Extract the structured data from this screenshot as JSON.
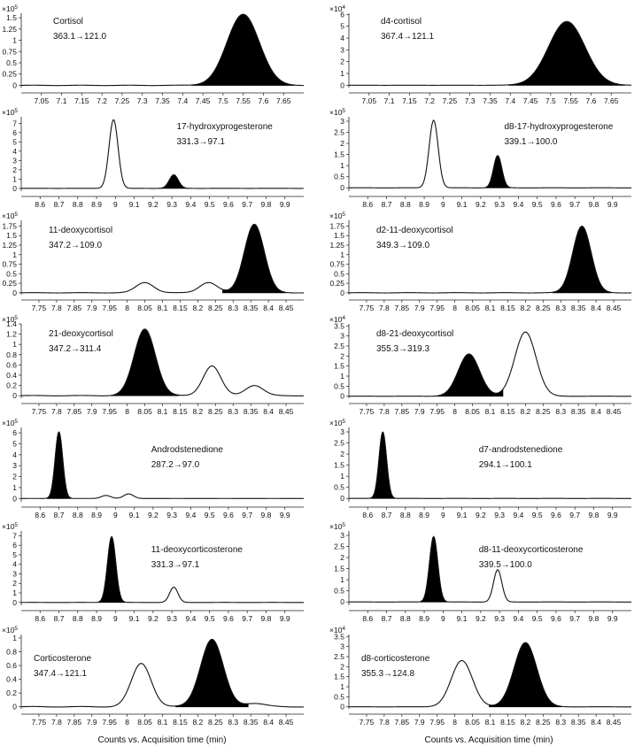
{
  "figure": {
    "x_axis_title": "Counts vs. Acquisition time (min)"
  },
  "chart_data": [
    {
      "type": "line",
      "col": 0,
      "row": 0,
      "title": "Cortisol",
      "transition": "363.1→121.0",
      "multiplier": "×10",
      "exponent": "5",
      "xlim": [
        7.0,
        7.7
      ],
      "ylim": [
        -0.05,
        1.6
      ],
      "x_ticks": [
        7.05,
        7.1,
        7.15,
        7.2,
        7.25,
        7.3,
        7.35,
        7.4,
        7.45,
        7.5,
        7.55,
        7.6,
        7.65
      ],
      "x_tick_labels": [
        "7.05",
        "7.1",
        "7.15",
        "7.2",
        "7.25",
        "7.3",
        "7.35",
        "7.4",
        "7.45",
        "7.5",
        "7.55",
        "7.6",
        "7.65"
      ],
      "y_ticks": [
        0,
        0.25,
        0.5,
        0.75,
        1,
        1.25,
        1.5
      ],
      "y_tick_labels": [
        "0",
        "0.25",
        "0.5",
        "0.75",
        "1",
        "1.25",
        "1.5"
      ],
      "peaks": [
        {
          "rt": 7.55,
          "height": 1.58,
          "width": 0.04,
          "filled": true
        }
      ]
    },
    {
      "type": "line",
      "col": 1,
      "row": 0,
      "title": "d4-cortisol",
      "transition": "367.4→121.1",
      "multiplier": "×10",
      "exponent": "4",
      "xlim": [
        7.0,
        7.7
      ],
      "ylim": [
        -0.2,
        6.1
      ],
      "x_ticks": [
        7.05,
        7.1,
        7.15,
        7.2,
        7.25,
        7.3,
        7.35,
        7.4,
        7.45,
        7.5,
        7.55,
        7.6,
        7.65
      ],
      "x_tick_labels": [
        "7.05",
        "7.1",
        "7.15",
        "7.2",
        "7.25",
        "7.3",
        "7.35",
        "7.4",
        "7.45",
        "7.5",
        "7.55",
        "7.6",
        "7.65"
      ],
      "y_ticks": [
        0,
        1,
        2,
        3,
        4,
        5,
        6
      ],
      "y_tick_labels": [
        "0",
        "1",
        "2",
        "3",
        "4",
        "5",
        "6"
      ],
      "peaks": [
        {
          "rt": 7.54,
          "height": 5.4,
          "width": 0.045,
          "filled": true
        }
      ]
    },
    {
      "type": "line",
      "col": 0,
      "row": 1,
      "title": "17-hydroxyprogesterone",
      "transition": "331.3→97.1",
      "multiplier": "×10",
      "exponent": "5",
      "xlim": [
        8.5,
        10.0
      ],
      "ylim": [
        -0.3,
        7.7
      ],
      "x_ticks": [
        8.6,
        8.7,
        8.8,
        8.9,
        9.0,
        9.1,
        9.2,
        9.3,
        9.4,
        9.5,
        9.6,
        9.7,
        9.8,
        9.9
      ],
      "x_tick_labels": [
        "8.6",
        "8.7",
        "8.8",
        "8.9",
        "9",
        "9.1",
        "9.2",
        "9.3",
        "9.4",
        "9.5",
        "9.6",
        "9.7",
        "9.8",
        "9.9"
      ],
      "y_ticks": [
        0,
        1,
        2,
        3,
        4,
        5,
        6,
        7
      ],
      "y_tick_labels": [
        "0",
        "1",
        "2",
        "3",
        "4",
        "5",
        "6",
        "7"
      ],
      "peaks": [
        {
          "rt": 8.99,
          "height": 7.4,
          "width": 0.024,
          "filled": false
        },
        {
          "rt": 9.31,
          "height": 1.45,
          "width": 0.024,
          "filled": true
        }
      ]
    },
    {
      "type": "line",
      "col": 1,
      "row": 1,
      "title": "d8-17-hydroxyprogesterone",
      "transition": "339.1→100.0",
      "multiplier": "×10",
      "exponent": "5",
      "xlim": [
        8.5,
        10.0
      ],
      "ylim": [
        -0.15,
        3.2
      ],
      "x_ticks": [
        8.6,
        8.7,
        8.8,
        8.9,
        9.0,
        9.1,
        9.2,
        9.3,
        9.4,
        9.5,
        9.6,
        9.7,
        9.8,
        9.9
      ],
      "x_tick_labels": [
        "8.6",
        "8.7",
        "8.8",
        "8.9",
        "9",
        "9.1",
        "9.2",
        "9.3",
        "9.4",
        "9.5",
        "9.6",
        "9.7",
        "9.8",
        "9.9"
      ],
      "y_ticks": [
        0,
        0.5,
        1,
        1.5,
        2,
        2.5,
        3
      ],
      "y_tick_labels": [
        "0",
        "0.5",
        "1",
        "1.5",
        "2",
        "2.5",
        "3"
      ],
      "peaks": [
        {
          "rt": 8.95,
          "height": 3.05,
          "width": 0.024,
          "filled": false
        },
        {
          "rt": 9.29,
          "height": 1.45,
          "width": 0.022,
          "filled": true
        }
      ]
    },
    {
      "type": "line",
      "col": 0,
      "row": 2,
      "title": "11-deoxycortisol",
      "transition": "347.2→109.0",
      "multiplier": "×10",
      "exponent": "5",
      "xlim": [
        7.7,
        8.5
      ],
      "ylim": [
        -0.05,
        1.9
      ],
      "x_ticks": [
        7.75,
        7.8,
        7.85,
        7.9,
        7.95,
        8.0,
        8.05,
        8.1,
        8.15,
        8.2,
        8.25,
        8.3,
        8.35,
        8.4,
        8.45
      ],
      "x_tick_labels": [
        "7.75",
        "7.8",
        "7.85",
        "7.9",
        "7.95",
        "8",
        "8.05",
        "8.1",
        "8.15",
        "8.2",
        "8.25",
        "8.3",
        "8.35",
        "8.4",
        "8.45"
      ],
      "y_ticks": [
        0,
        0.25,
        0.5,
        0.75,
        1,
        1.25,
        1.5,
        1.75
      ],
      "y_tick_labels": [
        "0",
        "0.25",
        "0.5",
        "0.75",
        "1",
        "1.25",
        "1.5",
        "1.75"
      ],
      "peaks": [
        {
          "rt": 8.05,
          "height": 0.27,
          "width": 0.025,
          "filled": false
        },
        {
          "rt": 8.23,
          "height": 0.27,
          "width": 0.025,
          "filled": false
        },
        {
          "rt": 8.36,
          "height": 1.8,
          "width": 0.028,
          "filled": true
        }
      ]
    },
    {
      "type": "line",
      "col": 1,
      "row": 2,
      "title": "d2-11-deoxycortisol",
      "transition": "349.3→109.0",
      "multiplier": "×10",
      "exponent": "5",
      "xlim": [
        7.7,
        8.5
      ],
      "ylim": [
        -0.05,
        1.9
      ],
      "x_ticks": [
        7.75,
        7.8,
        7.85,
        7.9,
        7.95,
        8.0,
        8.05,
        8.1,
        8.15,
        8.2,
        8.25,
        8.3,
        8.35,
        8.4,
        8.45
      ],
      "x_tick_labels": [
        "7.75",
        "7.8",
        "7.85",
        "7.9",
        "7.95",
        "8",
        "8.05",
        "8.1",
        "8.15",
        "8.2",
        "8.25",
        "8.3",
        "8.35",
        "8.4",
        "8.45"
      ],
      "y_ticks": [
        0,
        0.25,
        0.5,
        0.75,
        1,
        1.25,
        1.5,
        1.75
      ],
      "y_tick_labels": [
        "0",
        "0.25",
        "0.5",
        "0.75",
        "1",
        "1.25",
        "1.5",
        "1.75"
      ],
      "peaks": [
        {
          "rt": 8.36,
          "height": 1.75,
          "width": 0.026,
          "filled": true
        }
      ]
    },
    {
      "type": "line",
      "col": 0,
      "row": 3,
      "title": "21-deoxycortisol",
      "transition": "347.2→311.4",
      "multiplier": "×10",
      "exponent": "5",
      "xlim": [
        7.7,
        8.5
      ],
      "ylim": [
        -0.05,
        1.4
      ],
      "x_ticks": [
        7.75,
        7.8,
        7.85,
        7.9,
        7.95,
        8.0,
        8.05,
        8.1,
        8.15,
        8.2,
        8.25,
        8.3,
        8.35,
        8.4,
        8.45
      ],
      "x_tick_labels": [
        "7.75",
        "7.8",
        "7.85",
        "7.9",
        "7.95",
        "8",
        "8.05",
        "8.1",
        "8.15",
        "8.2",
        "8.25",
        "8.3",
        "8.35",
        "8.4",
        "8.45"
      ],
      "y_ticks": [
        0,
        0.2,
        0.4,
        0.6,
        0.8,
        1,
        1.2,
        1.4
      ],
      "y_tick_labels": [
        "0",
        "0.2",
        "0.4",
        "0.6",
        "0.8",
        "1",
        "1.2",
        "1.4"
      ],
      "peaks": [
        {
          "rt": 8.05,
          "height": 1.3,
          "width": 0.03,
          "filled": true
        },
        {
          "rt": 8.24,
          "height": 0.58,
          "width": 0.025,
          "filled": false
        },
        {
          "rt": 8.36,
          "height": 0.2,
          "width": 0.025,
          "filled": false
        }
      ]
    },
    {
      "type": "line",
      "col": 1,
      "row": 3,
      "title": "d8-21-deoxycortisol",
      "transition": "355.3→319.3",
      "multiplier": "×10",
      "exponent": "4",
      "xlim": [
        7.7,
        8.5
      ],
      "ylim": [
        -0.1,
        3.6
      ],
      "x_ticks": [
        7.75,
        7.8,
        7.85,
        7.9,
        7.95,
        8.0,
        8.05,
        8.1,
        8.15,
        8.2,
        8.25,
        8.3,
        8.35,
        8.4,
        8.45
      ],
      "x_tick_labels": [
        "7.75",
        "7.8",
        "7.85",
        "7.9",
        "7.95",
        "8",
        "8.05",
        "8.1",
        "8.15",
        "8.2",
        "8.25",
        "8.3",
        "8.35",
        "8.4",
        "8.45"
      ],
      "y_ticks": [
        0,
        0.5,
        1,
        1.5,
        2,
        2.5,
        3,
        3.5
      ],
      "y_tick_labels": [
        "0",
        "0.5",
        "1",
        "1.5",
        "2",
        "2.5",
        "3",
        "3.5"
      ],
      "peaks": [
        {
          "rt": 8.04,
          "height": 2.1,
          "width": 0.03,
          "filled": true
        },
        {
          "rt": 8.2,
          "height": 3.2,
          "width": 0.03,
          "filled": false
        }
      ]
    },
    {
      "type": "line",
      "col": 0,
      "row": 4,
      "title": "Androdstenedione",
      "transition": "287.2→97.0",
      "multiplier": "×10",
      "exponent": "5",
      "xlim": [
        8.5,
        10.0
      ],
      "ylim": [
        -0.3,
        6.5
      ],
      "x_ticks": [
        8.6,
        8.7,
        8.8,
        8.9,
        9.0,
        9.1,
        9.2,
        9.3,
        9.4,
        9.5,
        9.6,
        9.7,
        9.8,
        9.9
      ],
      "x_tick_labels": [
        "8.6",
        "8.7",
        "8.8",
        "8.9",
        "9",
        "9.1",
        "9.2",
        "9.3",
        "9.4",
        "9.5",
        "9.6",
        "9.7",
        "9.8",
        "9.9"
      ],
      "y_ticks": [
        0,
        1,
        2,
        3,
        4,
        5,
        6
      ],
      "y_tick_labels": [
        "0",
        "1",
        "2",
        "3",
        "4",
        "5",
        "6"
      ],
      "peaks": [
        {
          "rt": 8.7,
          "height": 6.1,
          "width": 0.02,
          "filled": true
        },
        {
          "rt": 8.95,
          "height": 0.28,
          "width": 0.025,
          "filled": false
        },
        {
          "rt": 9.07,
          "height": 0.42,
          "width": 0.025,
          "filled": false
        }
      ]
    },
    {
      "type": "line",
      "col": 1,
      "row": 4,
      "title": "d7-androdstenedione",
      "transition": "294.1→100.1",
      "multiplier": "×10",
      "exponent": "5",
      "xlim": [
        8.5,
        10.0
      ],
      "ylim": [
        -0.15,
        3.2
      ],
      "x_ticks": [
        8.6,
        8.7,
        8.8,
        8.9,
        9.0,
        9.1,
        9.2,
        9.3,
        9.4,
        9.5,
        9.6,
        9.7,
        9.8,
        9.9
      ],
      "x_tick_labels": [
        "8.6",
        "8.7",
        "8.8",
        "8.9",
        "9",
        "9.1",
        "9.2",
        "9.3",
        "9.4",
        "9.5",
        "9.6",
        "9.7",
        "9.8",
        "9.9"
      ],
      "y_ticks": [
        0,
        0.5,
        1,
        1.5,
        2,
        2.5,
        3
      ],
      "y_tick_labels": [
        "0",
        "0.5",
        "1",
        "1.5",
        "2",
        "2.5",
        "3"
      ],
      "peaks": [
        {
          "rt": 8.68,
          "height": 3.0,
          "width": 0.02,
          "filled": true
        }
      ]
    },
    {
      "type": "line",
      "col": 0,
      "row": 5,
      "title": "11-deoxycorticosterone",
      "transition": "331.3→97.1",
      "multiplier": "×10",
      "exponent": "5",
      "xlim": [
        8.5,
        10.0
      ],
      "ylim": [
        -0.3,
        7.5
      ],
      "x_ticks": [
        8.6,
        8.7,
        8.8,
        8.9,
        9.0,
        9.1,
        9.2,
        9.3,
        9.4,
        9.5,
        9.6,
        9.7,
        9.8,
        9.9
      ],
      "x_tick_labels": [
        "8.6",
        "8.7",
        "8.8",
        "8.9",
        "9",
        "9.1",
        "9.2",
        "9.3",
        "9.4",
        "9.5",
        "9.6",
        "9.7",
        "9.8",
        "9.9"
      ],
      "y_ticks": [
        0,
        1,
        2,
        3,
        4,
        5,
        6,
        7
      ],
      "y_tick_labels": [
        "0",
        "1",
        "2",
        "3",
        "4",
        "5",
        "6",
        "7"
      ],
      "peaks": [
        {
          "rt": 8.98,
          "height": 6.9,
          "width": 0.022,
          "filled": true
        },
        {
          "rt": 9.31,
          "height": 1.6,
          "width": 0.022,
          "filled": false
        }
      ]
    },
    {
      "type": "line",
      "col": 1,
      "row": 5,
      "title": "d8-11-deoxycorticosterone",
      "transition": "339.5→100.0",
      "multiplier": "×10",
      "exponent": "5",
      "xlim": [
        8.5,
        10.0
      ],
      "ylim": [
        -0.15,
        3.2
      ],
      "x_ticks": [
        8.6,
        8.7,
        8.8,
        8.9,
        9.0,
        9.1,
        9.2,
        9.3,
        9.4,
        9.5,
        9.6,
        9.7,
        9.8,
        9.9
      ],
      "x_tick_labels": [
        "8.6",
        "8.7",
        "8.8",
        "8.9",
        "9",
        "9.1",
        "9.2",
        "9.3",
        "9.4",
        "9.5",
        "9.6",
        "9.7",
        "9.8",
        "9.9"
      ],
      "y_ticks": [
        0,
        0.5,
        1,
        1.5,
        2,
        2.5,
        3
      ],
      "y_tick_labels": [
        "0",
        "0.5",
        "1",
        "1.5",
        "2",
        "2.5",
        "3"
      ],
      "peaks": [
        {
          "rt": 8.95,
          "height": 2.95,
          "width": 0.022,
          "filled": true
        },
        {
          "rt": 9.29,
          "height": 1.45,
          "width": 0.022,
          "filled": false
        }
      ]
    },
    {
      "type": "line",
      "col": 0,
      "row": 6,
      "title": "Corticosterone",
      "transition": "347.4→121.1",
      "multiplier": "×10",
      "exponent": "5",
      "xlim": [
        7.7,
        8.5
      ],
      "ylim": [
        -0.03,
        1.05
      ],
      "x_ticks": [
        7.75,
        7.8,
        7.85,
        7.9,
        7.95,
        8.0,
        8.05,
        8.1,
        8.15,
        8.2,
        8.25,
        8.3,
        8.35,
        8.4,
        8.45
      ],
      "x_tick_labels": [
        "7.75",
        "7.8",
        "7.85",
        "7.9",
        "7.95",
        "8",
        "8.05",
        "8.1",
        "8.15",
        "8.2",
        "8.25",
        "8.3",
        "8.35",
        "8.4",
        "8.45"
      ],
      "y_ticks": [
        0,
        0.2,
        0.4,
        0.6,
        0.8,
        1
      ],
      "y_tick_labels": [
        "0",
        "0.2",
        "0.4",
        "0.6",
        "0.8",
        "1"
      ],
      "peaks": [
        {
          "rt": 8.04,
          "height": 0.63,
          "width": 0.028,
          "filled": false
        },
        {
          "rt": 8.24,
          "height": 0.98,
          "width": 0.032,
          "filled": true
        },
        {
          "rt": 8.36,
          "height": 0.05,
          "width": 0.03,
          "filled": false
        }
      ]
    },
    {
      "type": "line",
      "col": 1,
      "row": 6,
      "title": "d8-corticosterone",
      "transition": "355.3→124.8",
      "multiplier": "×10",
      "exponent": "4",
      "xlim": [
        7.7,
        8.5
      ],
      "ylim": [
        -0.1,
        3.6
      ],
      "x_ticks": [
        7.75,
        7.8,
        7.85,
        7.9,
        7.95,
        8.0,
        8.05,
        8.1,
        8.15,
        8.2,
        8.25,
        8.3,
        8.35,
        8.4,
        8.45
      ],
      "x_tick_labels": [
        "7.75",
        "7.8",
        "7.85",
        "7.9",
        "7.95",
        "8",
        "8.05",
        "8.1",
        "8.15",
        "8.2",
        "8.25",
        "8.3",
        "8.35",
        "8.4",
        "8.45"
      ],
      "y_ticks": [
        0,
        0.5,
        1,
        1.5,
        2,
        2.5,
        3,
        3.5
      ],
      "y_tick_labels": [
        "0",
        "0.5",
        "1",
        "1.5",
        "2",
        "2.5",
        "3",
        "3.5"
      ],
      "peaks": [
        {
          "rt": 8.02,
          "height": 2.3,
          "width": 0.03,
          "filled": false
        },
        {
          "rt": 8.2,
          "height": 3.2,
          "width": 0.032,
          "filled": true
        }
      ]
    }
  ]
}
